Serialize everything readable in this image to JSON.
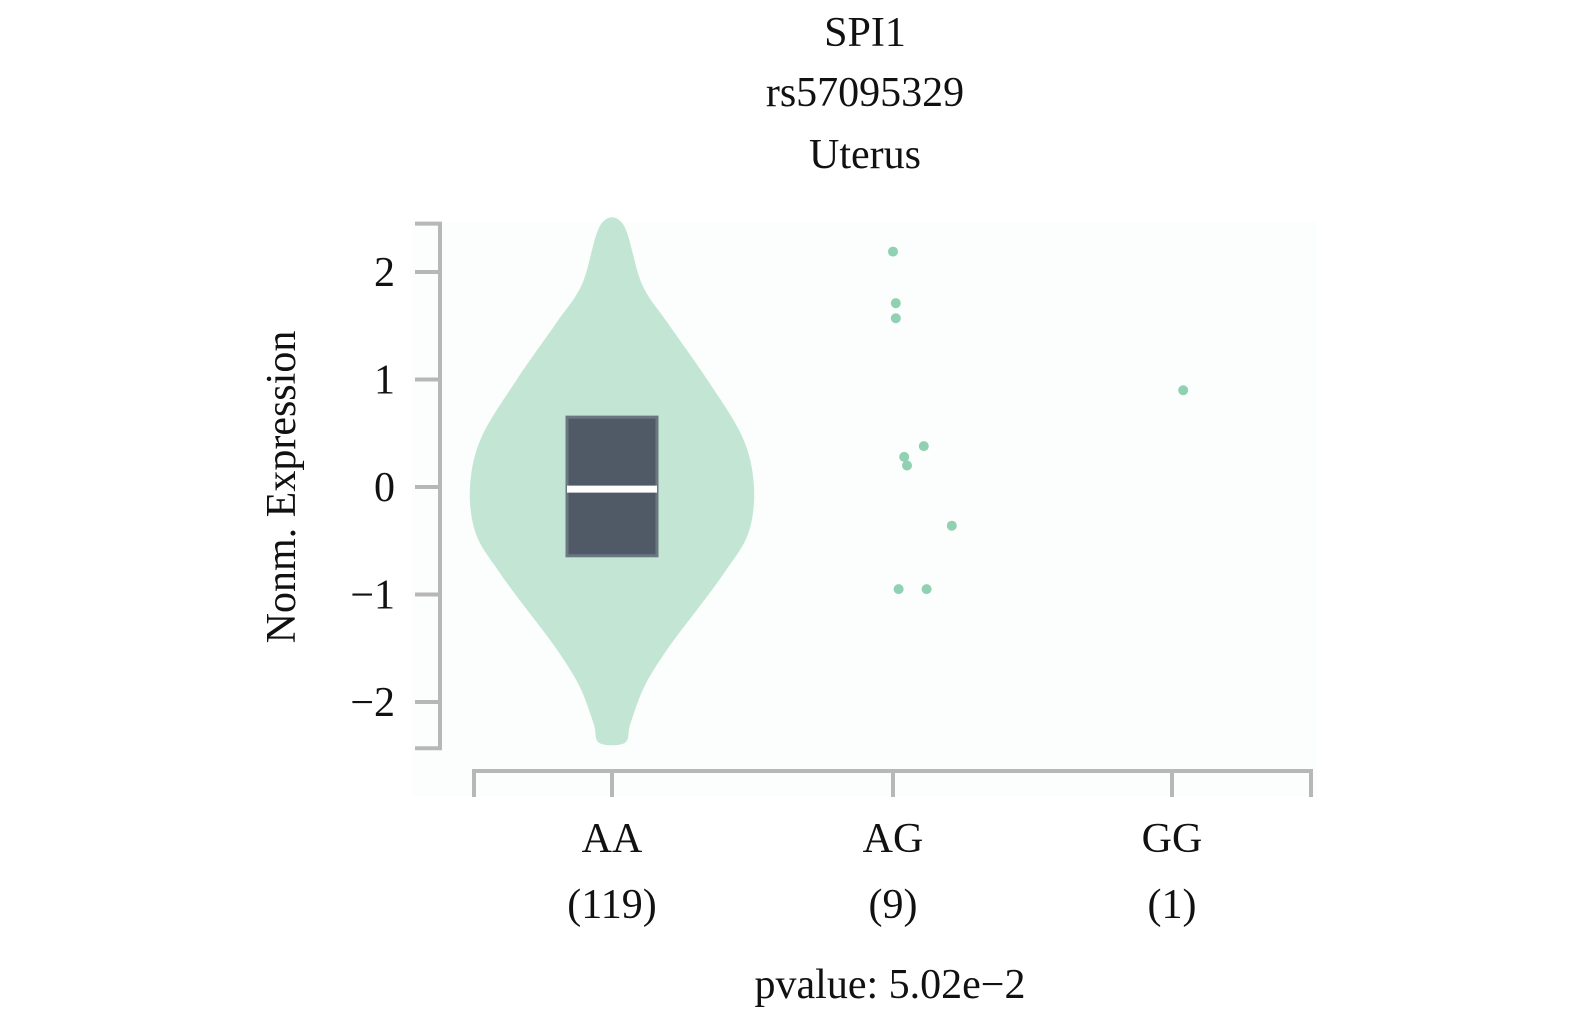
{
  "chart_data": {
    "type": "violin",
    "title": [
      "SPI1",
      "rs57095329",
      "Uterus"
    ],
    "ylabel": "Nonm. Expression",
    "xlabel": "",
    "ylim": [
      -2.43,
      2.45
    ],
    "yticks": [
      2,
      1,
      0,
      -1,
      -2
    ],
    "ytick_labels": [
      "2",
      "1",
      "0",
      "−1",
      "−2"
    ],
    "grid": false,
    "categories": [
      {
        "label": "AA",
        "count": "(119)"
      },
      {
        "label": "AG",
        "count": "(9)"
      },
      {
        "label": "GG",
        "count": "(1)"
      }
    ],
    "violin": {
      "category": "AA",
      "color": "#c3e6d4",
      "density_profile": [
        [
          2.44,
          0.08
        ],
        [
          1.89,
          0.21
        ],
        [
          1.53,
          0.39
        ],
        [
          1.0,
          0.67
        ],
        [
          0.46,
          0.92
        ],
        [
          0.0,
          1.0
        ],
        [
          -0.43,
          0.96
        ],
        [
          -0.78,
          0.8
        ],
        [
          -1.14,
          0.6
        ],
        [
          -1.49,
          0.4
        ],
        [
          -1.85,
          0.23
        ],
        [
          -2.2,
          0.13
        ],
        [
          -2.38,
          0.09
        ]
      ],
      "box": {
        "q1": -0.64,
        "median": -0.02,
        "q3": 0.65,
        "color": "#4f5a66"
      }
    },
    "points": [
      {
        "category": "AG",
        "jitter": 0.0,
        "value": 2.19
      },
      {
        "category": "AG",
        "jitter": 0.01,
        "value": 1.71
      },
      {
        "category": "AG",
        "jitter": 0.01,
        "value": 1.57
      },
      {
        "category": "AG",
        "jitter": 0.11,
        "value": 0.38
      },
      {
        "category": "AG",
        "jitter": 0.04,
        "value": 0.28
      },
      {
        "category": "AG",
        "jitter": 0.05,
        "value": 0.2
      },
      {
        "category": "AG",
        "jitter": 0.21,
        "value": -0.36
      },
      {
        "category": "AG",
        "jitter": 0.02,
        "value": -0.95
      },
      {
        "category": "AG",
        "jitter": 0.12,
        "value": -0.95
      },
      {
        "category": "GG",
        "jitter": 0.04,
        "value": 0.9
      }
    ],
    "point_color": "#8fd1b1",
    "annotation": "pvalue: 5.02e−2"
  }
}
